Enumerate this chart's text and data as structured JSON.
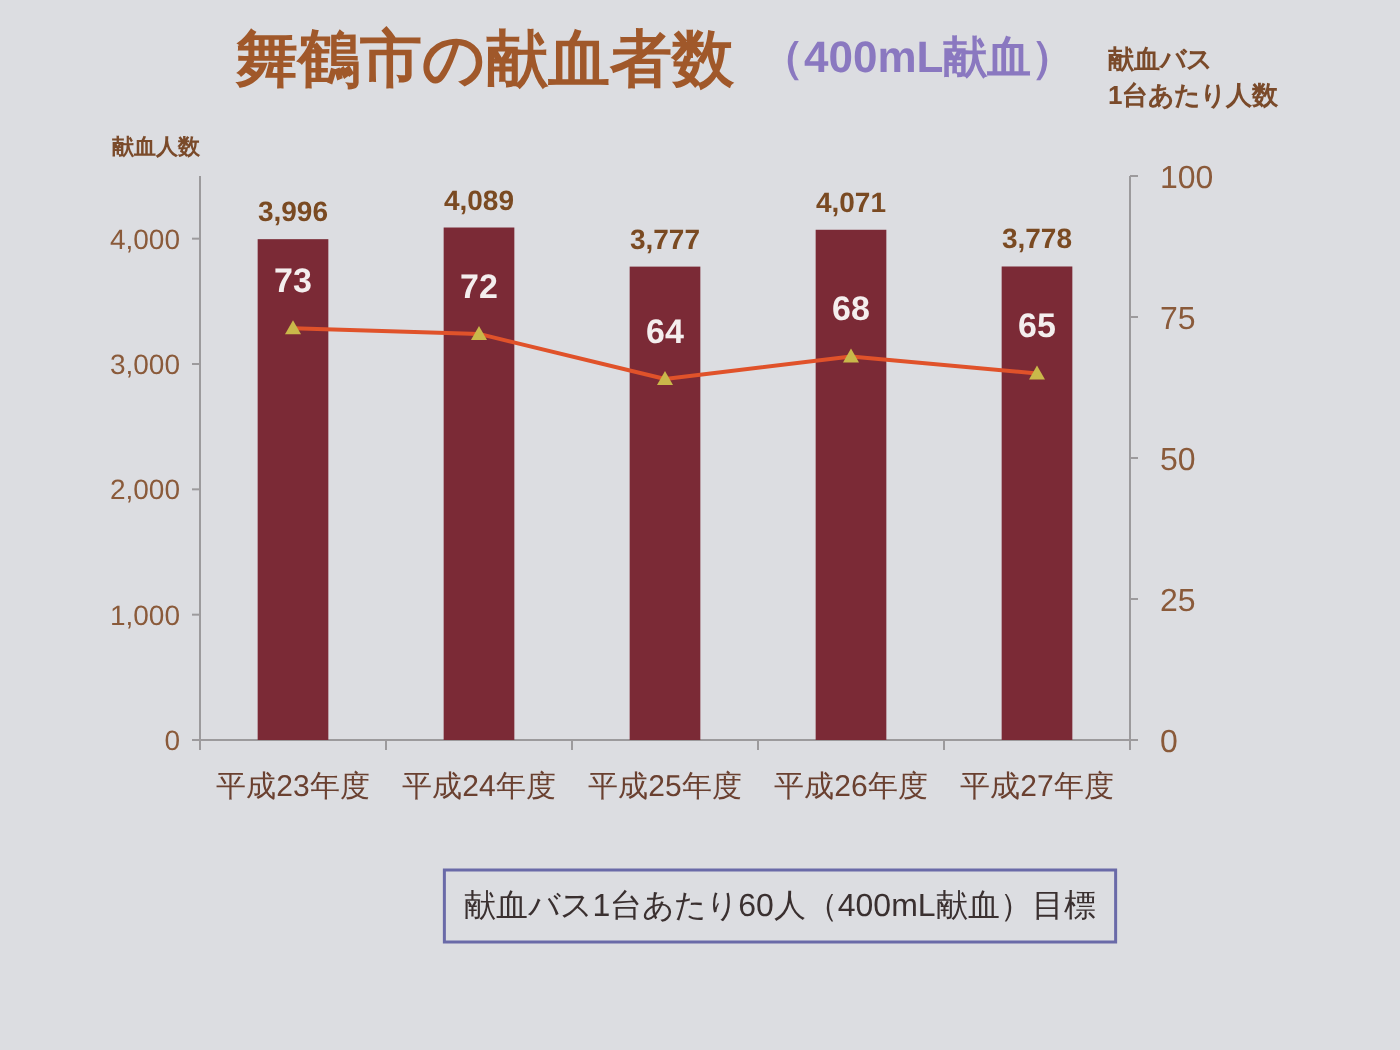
{
  "chart_data": {
    "type": "bar",
    "title": "舞鶴市の献血者数",
    "subtitle": "（400mL献血）",
    "ylabel": "献血人数",
    "y2label": "献血バス\n1台あたり人数",
    "categories": [
      "平成23年度",
      "平成24年度",
      "平成25年度",
      "平成26年度",
      "平成27年度"
    ],
    "series": [
      {
        "color": "#7b2a36",
        "values": [
          3996,
          4089,
          3777,
          4071,
          3778
        ],
        "value_labels": [
          "3,996",
          "4,089",
          "3,777",
          "4,071",
          "3,778"
        ]
      },
      {
        "type": "line",
        "axis": "y2",
        "color": "#e0522a",
        "values": [
          73,
          72,
          64,
          68,
          65
        ],
        "value_labels": [
          "73",
          "72",
          "64",
          "68",
          "65"
        ]
      }
    ],
    "marker": "triangle",
    "line_style": "solid",
    "ylim": [
      0,
      4500
    ],
    "yticks": [
      0,
      {
        "value": 1000,
        "label": "1,000"
      },
      {
        "value": 2000,
        "label": "2,000"
      },
      {
        "value": 3000,
        "label": "3,000"
      },
      {
        "value": 4000,
        "label": "4,000"
      }
    ],
    "y2lim": [
      0,
      100
    ],
    "y2ticks": [
      0,
      25,
      50,
      75,
      100
    ],
    "annotations": [
      "献血バス1台あたり60人（400mL献血）目標"
    ]
  }
}
